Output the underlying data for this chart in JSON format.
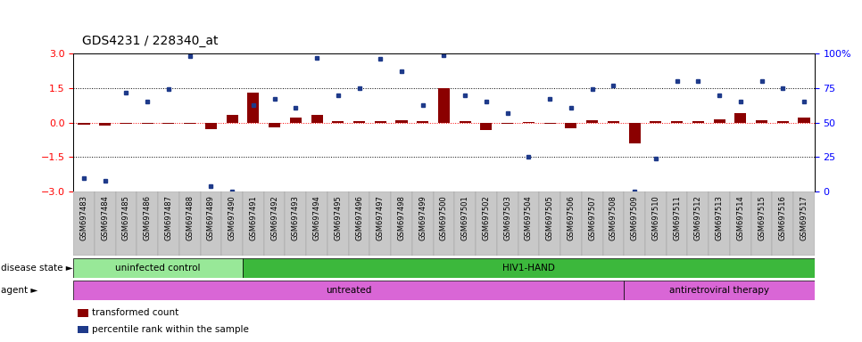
{
  "title": "GDS4231 / 228340_at",
  "samples": [
    "GSM697483",
    "GSM697484",
    "GSM697485",
    "GSM697486",
    "GSM697487",
    "GSM697488",
    "GSM697489",
    "GSM697490",
    "GSM697491",
    "GSM697492",
    "GSM697493",
    "GSM697494",
    "GSM697495",
    "GSM697496",
    "GSM697497",
    "GSM697498",
    "GSM697499",
    "GSM697500",
    "GSM697501",
    "GSM697502",
    "GSM697503",
    "GSM697504",
    "GSM697505",
    "GSM697506",
    "GSM697507",
    "GSM697508",
    "GSM697509",
    "GSM697510",
    "GSM697511",
    "GSM697512",
    "GSM697513",
    "GSM697514",
    "GSM697515",
    "GSM697516",
    "GSM697517"
  ],
  "bar_values": [
    -0.08,
    -0.13,
    -0.04,
    -0.07,
    -0.04,
    -0.04,
    -0.3,
    0.35,
    1.3,
    -0.2,
    0.2,
    0.35,
    0.07,
    0.07,
    0.07,
    0.12,
    0.07,
    1.5,
    0.07,
    -0.32,
    -0.07,
    0.04,
    -0.04,
    -0.23,
    0.1,
    0.07,
    -0.92,
    0.07,
    0.07,
    0.07,
    0.15,
    0.4,
    0.12,
    0.07,
    0.2
  ],
  "dot_values_pct": [
    10,
    8,
    72,
    65,
    74,
    98,
    4,
    0,
    63,
    67,
    61,
    97,
    70,
    75,
    96,
    87,
    63,
    99,
    70,
    65,
    57,
    25,
    67,
    61,
    74,
    77,
    0,
    24,
    80,
    80,
    70,
    65,
    80,
    75,
    65
  ],
  "bar_color": "#8B0000",
  "dot_color": "#1E3A8A",
  "ylim_left": [
    -3,
    3
  ],
  "ylim_right": [
    0,
    100
  ],
  "yticks_left": [
    -3,
    -1.5,
    0,
    1.5,
    3
  ],
  "yticks_right": [
    0,
    25,
    50,
    75,
    100
  ],
  "disease_state_groups": [
    {
      "label": "uninfected control",
      "start": 0,
      "end": 8,
      "color": "#98E898"
    },
    {
      "label": "HIV1-HAND",
      "start": 8,
      "end": 35,
      "color": "#3CB83C"
    }
  ],
  "agent_groups": [
    {
      "label": "untreated",
      "start": 0,
      "end": 26,
      "color": "#D966D6"
    },
    {
      "label": "antiretroviral therapy",
      "start": 26,
      "end": 35,
      "color": "#D966D6"
    }
  ],
  "legend_items": [
    {
      "label": "transformed count",
      "color": "#8B0000"
    },
    {
      "label": "percentile rank within the sample",
      "color": "#1E3A8A"
    }
  ],
  "bg_color": "#ffffff",
  "title_fontsize": 10,
  "tick_fontsize": 6,
  "label_fontsize": 7.5
}
